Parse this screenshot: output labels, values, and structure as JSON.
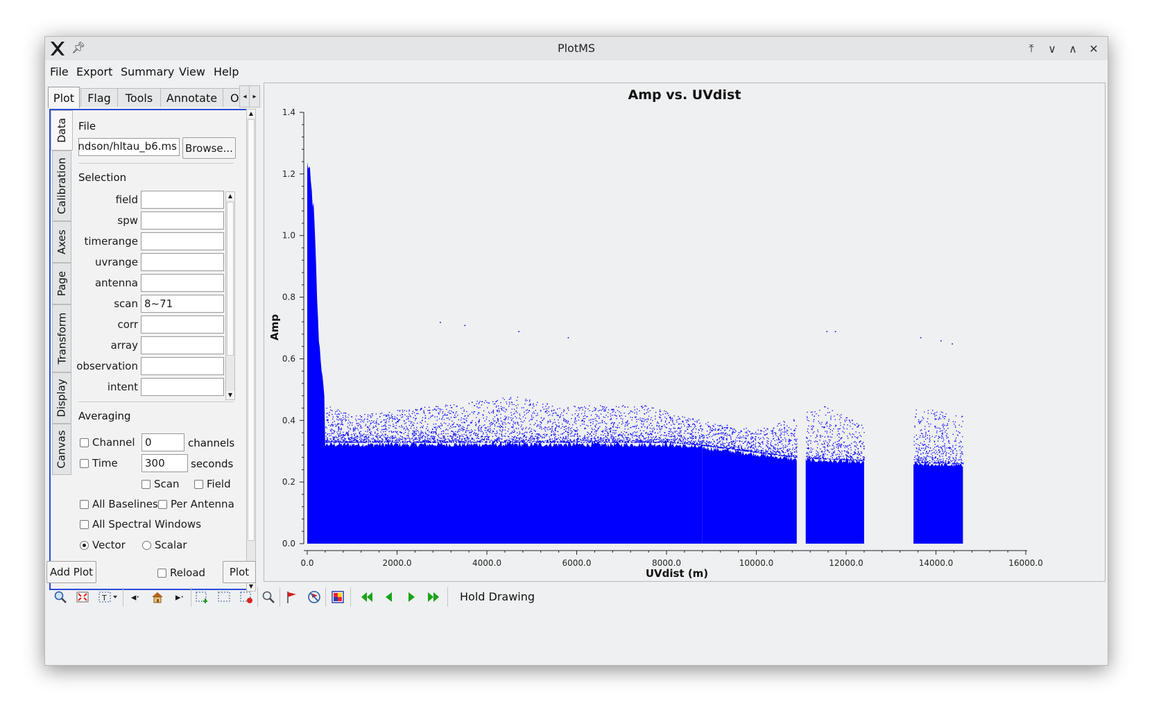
{
  "window": {
    "title": "PlotMS"
  },
  "menu": [
    "File",
    "Export",
    "Summary",
    "View",
    "Help"
  ],
  "top_tabs": [
    "Plot",
    "Flag",
    "Tools",
    "Annotate",
    "O"
  ],
  "side_tabs": [
    "Data",
    "Calibration",
    "Axes",
    "Page",
    "Transform",
    "Display",
    "Canvas"
  ],
  "data_panel": {
    "file_label": "File",
    "file_value": "ndson/hltau_b6.ms",
    "browse_label": "Browse...",
    "selection_label": "Selection",
    "selection_fields": [
      {
        "label": "field",
        "value": ""
      },
      {
        "label": "spw",
        "value": ""
      },
      {
        "label": "timerange",
        "value": ""
      },
      {
        "label": "uvrange",
        "value": ""
      },
      {
        "label": "antenna",
        "value": ""
      },
      {
        "label": "scan",
        "value": "8~71"
      },
      {
        "label": "corr",
        "value": ""
      },
      {
        "label": "array",
        "value": ""
      },
      {
        "label": "observation",
        "value": ""
      },
      {
        "label": "intent",
        "value": ""
      }
    ],
    "averaging_label": "Averaging",
    "channel_label": "Channel",
    "channel_value": "0",
    "channels_unit": "channels",
    "time_label": "Time",
    "time_value": "300",
    "seconds_unit": "seconds",
    "scan_label": "Scan",
    "field_label": "Field",
    "all_baselines_label": "All Baselines",
    "per_antenna_label": "Per Antenna",
    "all_spw_label": "All Spectral Windows",
    "vector_label": "Vector",
    "scalar_label": "Scalar",
    "checked": {
      "channel": false,
      "time": false,
      "scan": false,
      "field": false,
      "all_baselines": false,
      "per_antenna": false,
      "all_spw": false
    },
    "selected_mode": "Vector"
  },
  "bottom_buttons": {
    "add_plot": "Add Plot",
    "reload": "Reload",
    "plot": "Plot"
  },
  "toolbar": {
    "icons": [
      "zoom-icon",
      "zoom-fit-icon",
      "annotate-text-icon",
      "back-icon",
      "home-icon",
      "forward-icon",
      "select-add-icon",
      "select-icon",
      "select-remove-icon",
      "locate-icon",
      "flag-icon",
      "unflag-icon",
      "flag-extend-icon",
      "first-page-icon",
      "prev-page-icon",
      "next-page-icon",
      "last-page-icon"
    ],
    "hold_drawing": "Hold Drawing"
  },
  "colors": {
    "accent": "#2b4bd8",
    "points": "#0000ff",
    "nav_green": "#1aa31a"
  },
  "chart_data": {
    "type": "scatter",
    "title": "Amp vs. UVdist",
    "xlabel": "UVdist (m)",
    "ylabel": "Amp",
    "xlim": [
      0,
      16000
    ],
    "ylim": [
      0,
      1.4
    ],
    "xticks": [
      "0.0",
      "2000.0",
      "4000.0",
      "6000.0",
      "8000.0",
      "10000.0",
      "12000.0",
      "14000.0",
      "16000.0"
    ],
    "yticks": [
      "0.0",
      "0.2",
      "0.4",
      "0.6",
      "0.8",
      "1.0",
      "1.2",
      "1.4"
    ],
    "grid": false,
    "color": "#0000ff",
    "series": [
      {
        "x_ranges": [
          [
            0,
            8800
          ],
          [
            8800,
            10900
          ],
          [
            11100,
            12400
          ],
          [
            13500,
            14600
          ]
        ],
        "peak_uvdist_envelope": [
          [
            30,
            1.26
          ],
          [
            150,
            1.1
          ],
          [
            250,
            0.7
          ],
          [
            400,
            0.45
          ],
          [
            1000,
            0.42
          ],
          [
            3000,
            0.45
          ],
          [
            4700,
            0.48
          ],
          [
            5500,
            0.45
          ],
          [
            7500,
            0.45
          ],
          [
            8800,
            0.4
          ],
          [
            10000,
            0.37
          ],
          [
            11500,
            0.45
          ],
          [
            12300,
            0.39
          ],
          [
            13600,
            0.45
          ],
          [
            14500,
            0.42
          ]
        ],
        "dense_band_upper": [
          [
            400,
            0.33
          ],
          [
            8000,
            0.33
          ],
          [
            8800,
            0.32
          ],
          [
            10900,
            0.28
          ],
          [
            12400,
            0.27
          ],
          [
            14600,
            0.26
          ]
        ],
        "outliers": [
          [
            2950,
            0.72
          ],
          [
            3500,
            0.71
          ],
          [
            4700,
            0.69
          ],
          [
            5800,
            0.67
          ],
          [
            11560,
            0.69
          ],
          [
            11750,
            0.69
          ],
          [
            13650,
            0.67
          ],
          [
            14100,
            0.66
          ],
          [
            14350,
            0.65
          ]
        ]
      }
    ]
  }
}
